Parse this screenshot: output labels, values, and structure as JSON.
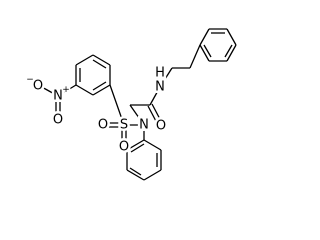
{
  "atoms": [
    {
      "label": "O",
      "charge": "−"
    },
    {
      "label": "N",
      "charge": "+"
    },
    {
      "label": "O"
    },
    {
      "label": "S"
    },
    {
      "label": "O"
    },
    {
      "label": "O"
    },
    {
      "label": "N"
    },
    {
      "label": "O"
    },
    {
      "label": "N",
      "hydrogen": "H"
    }
  ]
}
